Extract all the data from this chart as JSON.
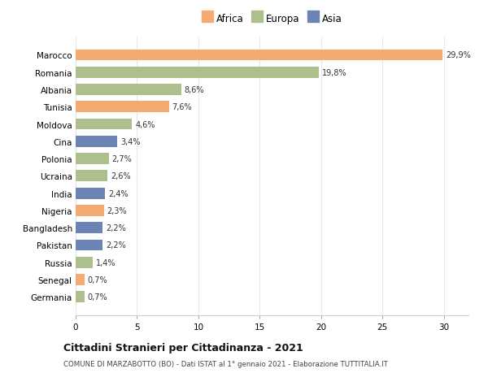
{
  "countries": [
    "Marocco",
    "Romania",
    "Albania",
    "Tunisia",
    "Moldova",
    "Cina",
    "Polonia",
    "Ucraina",
    "India",
    "Nigeria",
    "Bangladesh",
    "Pakistan",
    "Russia",
    "Senegal",
    "Germania"
  ],
  "values": [
    29.9,
    19.8,
    8.6,
    7.6,
    4.6,
    3.4,
    2.7,
    2.6,
    2.4,
    2.3,
    2.2,
    2.2,
    1.4,
    0.7,
    0.7
  ],
  "labels": [
    "29,9%",
    "19,8%",
    "8,6%",
    "7,6%",
    "4,6%",
    "3,4%",
    "2,7%",
    "2,6%",
    "2,4%",
    "2,3%",
    "2,2%",
    "2,2%",
    "1,4%",
    "0,7%",
    "0,7%"
  ],
  "continents": [
    "Africa",
    "Europa",
    "Europa",
    "Africa",
    "Europa",
    "Asia",
    "Europa",
    "Europa",
    "Asia",
    "Africa",
    "Asia",
    "Asia",
    "Europa",
    "Africa",
    "Europa"
  ],
  "colors": {
    "Africa": "#F5AA72",
    "Europa": "#ADBF8C",
    "Asia": "#6B83B5"
  },
  "legend_labels": [
    "Africa",
    "Europa",
    "Asia"
  ],
  "legend_colors": [
    "#F5AA72",
    "#ADBF8C",
    "#6B83B5"
  ],
  "xlim": [
    0,
    32
  ],
  "xticks": [
    0,
    5,
    10,
    15,
    20,
    25,
    30
  ],
  "title": "Cittadini Stranieri per Cittadinanza - 2021",
  "subtitle": "COMUNE DI MARZABOTTO (BO) - Dati ISTAT al 1° gennaio 2021 - Elaborazione TUTTITALIA.IT",
  "background_color": "#ffffff",
  "grid_color": "#e8e8e8"
}
